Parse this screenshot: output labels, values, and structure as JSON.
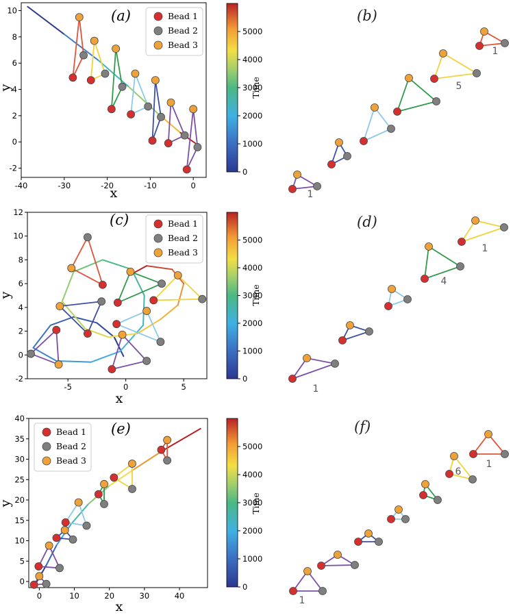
{
  "colorbar": {
    "label": "Time",
    "max": 6000,
    "ticks": [
      0,
      1000,
      2000,
      3000,
      4000,
      5000
    ]
  },
  "legend": {
    "entries": [
      "Bead 1",
      "Bead 2",
      "Bead 3"
    ]
  },
  "colors": {
    "bead1": "#d62f2f",
    "bead2": "#7f7f7f",
    "bead3": "#f0a23a",
    "edges": [
      "#7b4fa6",
      "#3c4fa3",
      "#8ac9e8",
      "#2f9a4a",
      "#f0d33a",
      "#e0533a"
    ]
  },
  "chart_data": [
    {
      "panel": "(a)",
      "type": "scatter",
      "xlabel": "x",
      "ylabel": "y",
      "xlim": [
        -40,
        3
      ],
      "ylim": [
        -2.7,
        10.6
      ],
      "xticks": [
        -40,
        -30,
        -20,
        -10,
        0
      ],
      "yticks": [
        -2,
        0,
        2,
        4,
        6,
        8,
        10
      ],
      "trajectory": [
        [
          -38.5,
          10.3
        ],
        [
          -30,
          8.2
        ],
        [
          -22,
          6.2
        ],
        [
          -15,
          4.2
        ],
        [
          -8,
          2.1
        ],
        [
          -3,
          0.7
        ],
        [
          0.5,
          -0.1
        ]
      ],
      "triangles": [
        {
          "b1": [
            -1.5,
            -2.1
          ],
          "b2": [
            1,
            -0.4
          ],
          "b3": [
            0,
            2.5
          ]
        },
        {
          "b1": [
            -5.8,
            -0.1
          ],
          "b2": [
            -2,
            0.5
          ],
          "b3": [
            -5.2,
            3
          ]
        },
        {
          "b1": [
            -9.5,
            0.1
          ],
          "b2": [
            -7.5,
            1.9
          ],
          "b3": [
            -8.8,
            4.7
          ]
        },
        {
          "b1": [
            -14.5,
            2.1
          ],
          "b2": [
            -10.5,
            2.7
          ],
          "b3": [
            -13.5,
            5.2
          ]
        },
        {
          "b1": [
            -19,
            2.5
          ],
          "b2": [
            -16.5,
            4.2
          ],
          "b3": [
            -18,
            7.1
          ]
        },
        {
          "b1": [
            -23.8,
            4.7
          ],
          "b2": [
            -20.5,
            5.2
          ],
          "b3": [
            -23,
            7.7
          ]
        },
        {
          "b1": [
            -28,
            4.9
          ],
          "b2": [
            -25.5,
            6.6
          ],
          "b3": [
            -26.5,
            9.5
          ]
        }
      ]
    },
    {
      "panel": "(c)",
      "type": "scatter",
      "xlabel": "x",
      "ylabel": "y",
      "xlim": [
        -8.5,
        7
      ],
      "ylim": [
        -2,
        12
      ],
      "xticks": [
        -5,
        0,
        5
      ],
      "yticks": [
        -2,
        0,
        2,
        4,
        6,
        8,
        10,
        12
      ],
      "trajectory": [
        [
          -0.2,
          -0.1
        ],
        [
          -1,
          1.5
        ],
        [
          -2.5,
          2.7
        ],
        [
          -4.5,
          3.2
        ],
        [
          -6.5,
          2.5
        ],
        [
          -8,
          0.6
        ],
        [
          -6,
          -0.5
        ],
        [
          -3,
          -0.6
        ],
        [
          -0.5,
          0.3
        ],
        [
          1.5,
          2.5
        ],
        [
          1.6,
          5
        ],
        [
          0.5,
          7.2
        ],
        [
          -2,
          8
        ],
        [
          -4.5,
          7
        ],
        [
          -5.5,
          4.5
        ],
        [
          -3.5,
          2.2
        ],
        [
          -1.5,
          1.5
        ],
        [
          1,
          1.8
        ],
        [
          3,
          3
        ],
        [
          4.5,
          4.2
        ],
        [
          5,
          6
        ],
        [
          4,
          7.2
        ],
        [
          1.8,
          7.5
        ],
        [
          0.5,
          6.8
        ]
      ],
      "triangles": [
        {
          "b1": [
            -1.2,
            -1.2
          ],
          "b2": [
            1.8,
            -0.5
          ],
          "b3": [
            -0.3,
            1.7
          ]
        },
        {
          "b1": [
            -6,
            2.1
          ],
          "b2": [
            -8.2,
            0.1
          ],
          "b3": [
            -5.8,
            -0.8
          ]
        },
        {
          "b1": [
            -3.3,
            1.8
          ],
          "b2": [
            -2.1,
            4.5
          ],
          "b3": [
            -5.7,
            4.1
          ]
        },
        {
          "b1": [
            -0.8,
            2.6
          ],
          "b2": [
            3,
            1.1
          ],
          "b3": [
            1.8,
            3.7
          ]
        },
        {
          "b1": [
            -0.7,
            4.4
          ],
          "b2": [
            3.1,
            6
          ],
          "b3": [
            0.4,
            7
          ]
        },
        {
          "b1": [
            2.4,
            4.6
          ],
          "b2": [
            6.6,
            4.7
          ],
          "b3": [
            4.5,
            6.7
          ]
        },
        {
          "b1": [
            -2,
            5.9
          ],
          "b2": [
            -3.3,
            9.9
          ],
          "b3": [
            -4.7,
            7.3
          ]
        }
      ]
    },
    {
      "panel": "(e)",
      "type": "scatter",
      "xlabel": "x",
      "ylabel": "y",
      "xlim": [
        -3,
        48
      ],
      "ylim": [
        -1.5,
        40
      ],
      "xticks": [
        0,
        10,
        20,
        30,
        40
      ],
      "yticks": [
        0,
        5,
        10,
        15,
        20,
        25,
        30,
        35,
        40
      ],
      "trajectory": [
        [
          -1,
          -0.5
        ],
        [
          2,
          4
        ],
        [
          5,
          9
        ],
        [
          9,
          14
        ],
        [
          14,
          19
        ],
        [
          20,
          23.5
        ],
        [
          27,
          27.5
        ],
        [
          35,
          32
        ],
        [
          46,
          37.5
        ]
      ],
      "triangles": [
        {
          "b1": [
            -1.5,
            -0.8
          ],
          "b2": [
            2,
            -0.6
          ],
          "b3": [
            0,
            1.3
          ]
        },
        {
          "b1": [
            -0.2,
            3.7
          ],
          "b2": [
            5.8,
            3.3
          ],
          "b3": [
            2.8,
            8.8
          ]
        },
        {
          "b1": [
            4.9,
            10.7
          ],
          "b2": [
            9.6,
            10.3
          ],
          "b3": [
            7.3,
            12.6
          ]
        },
        {
          "b1": [
            7.5,
            14.5
          ],
          "b2": [
            13.5,
            13.7
          ],
          "b3": [
            11.2,
            19.4
          ]
        },
        {
          "b1": [
            16.9,
            21.4
          ],
          "b2": [
            18.5,
            19
          ],
          "b3": [
            18.5,
            23.9
          ]
        },
        {
          "b1": [
            21.3,
            25.5
          ],
          "b2": [
            26.5,
            22.7
          ],
          "b3": [
            26.5,
            28.9
          ]
        },
        {
          "b1": [
            34.8,
            32.3
          ],
          "b2": [
            36.5,
            29.7
          ],
          "b3": [
            36.5,
            34.7
          ]
        }
      ]
    },
    {
      "panel": "(b)",
      "type": "diagram",
      "annotations": [
        "1",
        "5",
        "1"
      ],
      "triangles": [
        {
          "b1": [
            427,
            276
          ],
          "b2": [
            463,
            272
          ],
          "b3": [
            434,
            255
          ]
        },
        {
          "b1": [
            484,
            240
          ],
          "b2": [
            507,
            228
          ],
          "b3": [
            495,
            208
          ]
        },
        {
          "b1": [
            531,
            206
          ],
          "b2": [
            571,
            188
          ],
          "b3": [
            547,
            157
          ]
        },
        {
          "b1": [
            580,
            163
          ],
          "b2": [
            637,
            148
          ],
          "b3": [
            597,
            114
          ]
        },
        {
          "b1": [
            634,
            115
          ],
          "b2": [
            696,
            107
          ],
          "b3": [
            647,
            78
          ]
        },
        {
          "b1": [
            700,
            67
          ],
          "b2": [
            737,
            63
          ],
          "b3": [
            707,
            46
          ]
        }
      ]
    },
    {
      "panel": "(d)",
      "type": "diagram",
      "annotations": [
        "1",
        "4",
        "1"
      ],
      "triangles": [
        {
          "b1": [
            427,
            553
          ],
          "b2": [
            489,
            531
          ],
          "b3": [
            448,
            523
          ]
        },
        {
          "b1": [
            500,
            497
          ],
          "b2": [
            539,
            484
          ],
          "b3": [
            511,
            475
          ]
        },
        {
          "b1": [
            567,
            447
          ],
          "b2": [
            595,
            437
          ],
          "b3": [
            572,
            422
          ]
        },
        {
          "b1": [
            620,
            407
          ],
          "b2": [
            672,
            389
          ],
          "b3": [
            626,
            360
          ]
        },
        {
          "b1": [
            674,
            353
          ],
          "b2": [
            736,
            332
          ],
          "b3": [
            694,
            322
          ]
        }
      ]
    },
    {
      "panel": "(f)",
      "type": "diagram",
      "annotations": [
        "1",
        "6",
        "1"
      ],
      "triangles": [
        {
          "b1": [
            428,
            863
          ],
          "b2": [
            471,
            863
          ],
          "b3": [
            449,
            834
          ]
        },
        {
          "b1": [
            469,
            826
          ],
          "b2": [
            518,
            825
          ],
          "b3": [
            493,
            810
          ]
        },
        {
          "b1": [
            523,
            791
          ],
          "b2": [
            553,
            791
          ],
          "b3": [
            538,
            779
          ]
        },
        {
          "b1": [
            571,
            758
          ],
          "b2": [
            592,
            758
          ],
          "b3": [
            582,
            744
          ]
        },
        {
          "b1": [
            618,
            723
          ],
          "b2": [
            639,
            730
          ],
          "b3": [
            621,
            707
          ]
        },
        {
          "b1": [
            656,
            692
          ],
          "b2": [
            690,
            700
          ],
          "b3": [
            663,
            666
          ]
        },
        {
          "b1": [
            691,
            663
          ],
          "b2": [
            737,
            663
          ],
          "b3": [
            713,
            634
          ]
        }
      ]
    }
  ]
}
